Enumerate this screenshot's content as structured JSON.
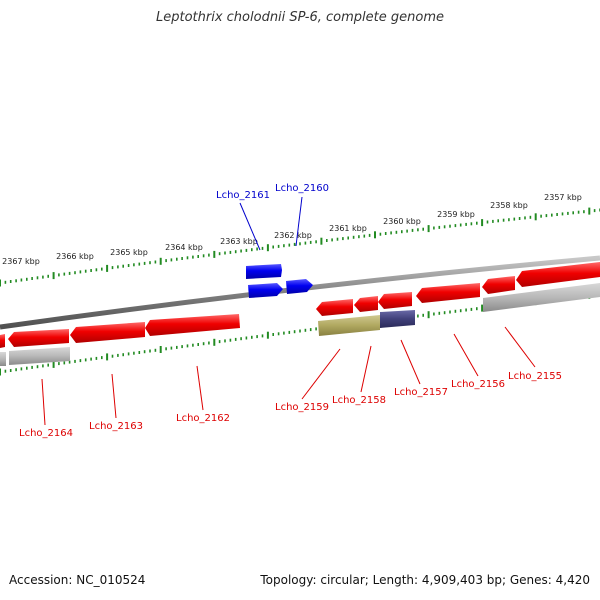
{
  "title": "Leptothrix cholodnii SP-6, complete genome",
  "accession": "Accession: NC_010524",
  "summary": "Topology: circular; Length: 4,909,403 bp; Genes: 4,420",
  "colors": {
    "backbone": "#808080",
    "gene_red": "#f00000",
    "gene_blue": "#0000f0",
    "gene_grey": "#b8b8b8",
    "gene_olive": "#b0a860",
    "gene_navy": "#40407a",
    "tick_green": "#228b22",
    "label_red": "#dd0000",
    "label_blue": "#0000cc"
  },
  "scale_ticks": [
    "2357 kbp",
    "2358 kbp",
    "2359 kbp",
    "2360 kbp",
    "2361 kbp",
    "2362 kbp",
    "2363 kbp",
    "2364 kbp",
    "2365 kbp",
    "2366 kbp",
    "2367 kbp"
  ],
  "genes": [
    {
      "id": "Lcho_2155",
      "strand": "reverse",
      "color": "red"
    },
    {
      "id": "Lcho_2156",
      "strand": "reverse",
      "color": "red"
    },
    {
      "id": "Lcho_2157",
      "strand": "reverse",
      "color": "red"
    },
    {
      "id": "Lcho_2158",
      "strand": "reverse",
      "color": "red"
    },
    {
      "id": "Lcho_2159",
      "strand": "reverse",
      "color": "red"
    },
    {
      "id": "Lcho_2160",
      "strand": "forward",
      "color": "blue"
    },
    {
      "id": "Lcho_2161",
      "strand": "forward",
      "color": "blue"
    },
    {
      "id": "Lcho_2162",
      "strand": "reverse",
      "color": "red"
    },
    {
      "id": "Lcho_2163",
      "strand": "reverse",
      "color": "red"
    },
    {
      "id": "Lcho_2164",
      "strand": "reverse",
      "color": "red"
    }
  ]
}
